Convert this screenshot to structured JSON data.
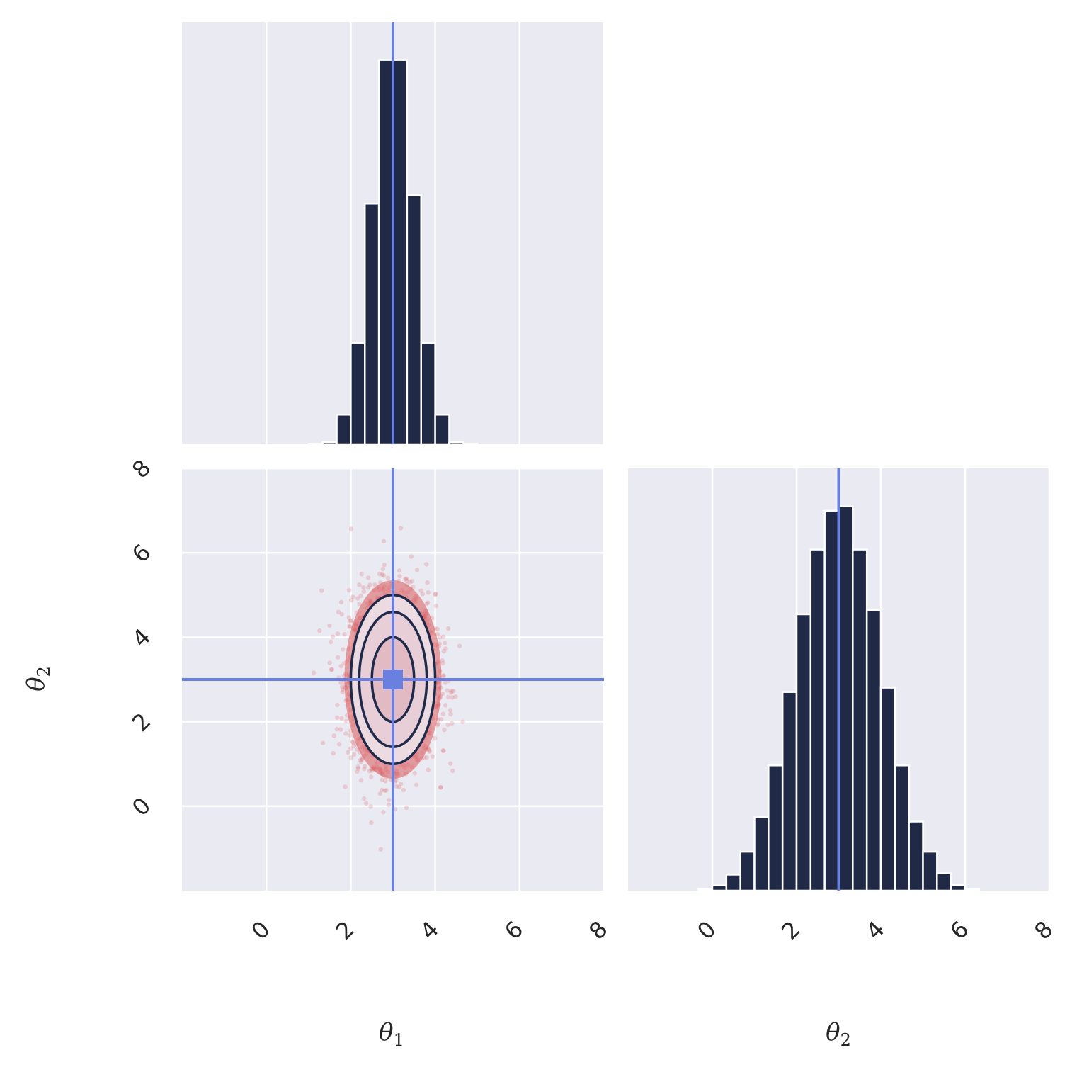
{
  "chart_data": [
    {
      "type": "bar",
      "panel": "top-left",
      "title": "",
      "xlabel": "",
      "ylabel": "",
      "xlim": [
        -2,
        8
      ],
      "x_ticks": [
        0,
        2,
        4,
        6,
        8
      ],
      "x_ticklabels_shown": false,
      "y_ticks_shown": false,
      "grid": true,
      "bin_edges": [
        1.0,
        1.333,
        1.667,
        2.0,
        2.333,
        2.667,
        3.0,
        3.333,
        3.667,
        4.0,
        4.333,
        4.667,
        5.0
      ],
      "values": [
        0.001,
        0.005,
        0.07,
        0.24,
        0.57,
        0.91,
        0.91,
        0.59,
        0.24,
        0.07,
        0.005,
        0.001
      ],
      "bar_color": "#202a46",
      "true_value": 3,
      "true_value_color": "#6a80e0"
    },
    {
      "type": "scatter",
      "panel": "bottom-left",
      "title": "",
      "xlabel": "θ1",
      "ylabel": "θ2",
      "xlim": [
        -2,
        8
      ],
      "ylim": [
        -2,
        8
      ],
      "x_ticks": [
        0,
        2,
        4,
        6,
        8
      ],
      "x_ticklabels": [
        "0",
        "2",
        "4",
        "6",
        "8"
      ],
      "y_ticks": [
        0,
        2,
        4,
        6,
        8
      ],
      "y_ticklabels": [
        "0",
        "2",
        "4",
        "6",
        "8"
      ],
      "grid": true,
      "distribution": {
        "mean": [
          3,
          3
        ],
        "std": [
          0.5,
          1.0
        ]
      },
      "contour_levels": [
        {
          "rx": 1.0,
          "ry": 2.0
        },
        {
          "rx": 0.8,
          "ry": 1.6
        },
        {
          "rx": 0.5,
          "ry": 1.0
        }
      ],
      "point_color": "#d9585a",
      "contour_color": "#1f2a4a",
      "true_value": [
        3,
        3
      ],
      "true_value_color": "#6a80e0"
    },
    {
      "type": "bar",
      "panel": "bottom-right",
      "title": "",
      "xlabel": "θ2",
      "ylabel": "",
      "xlim": [
        -2,
        8
      ],
      "x_ticks": [
        0,
        2,
        4,
        6,
        8
      ],
      "x_ticklabels": [
        "0",
        "2",
        "4",
        "6",
        "8"
      ],
      "y_ticks_shown": false,
      "grid": true,
      "bin_edges": [
        -0.333,
        0.0,
        0.333,
        0.667,
        1.0,
        1.333,
        1.667,
        2.0,
        2.333,
        2.667,
        3.0,
        3.333,
        3.667,
        4.0,
        4.333,
        4.667,
        5.0,
        5.333,
        5.667,
        6.0,
        6.333
      ],
      "values": [
        0.004,
        0.012,
        0.037,
        0.09,
        0.17,
        0.29,
        0.46,
        0.64,
        0.79,
        0.88,
        0.89,
        0.79,
        0.65,
        0.47,
        0.29,
        0.16,
        0.09,
        0.04,
        0.013,
        0.004
      ],
      "bar_color": "#202a46",
      "true_value": 3,
      "true_value_color": "#6a80e0"
    }
  ],
  "labels": {
    "theta1_base": "θ",
    "theta1_sub": "1",
    "theta2_base": "θ",
    "theta2_sub": "2",
    "ytheta2_base": "θ",
    "ytheta2_sub": "2"
  }
}
